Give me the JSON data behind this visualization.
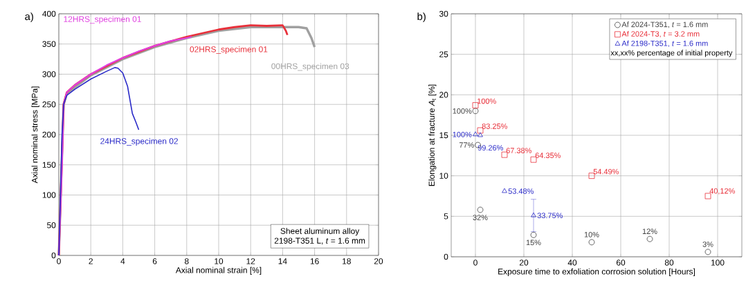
{
  "chart_data": [
    {
      "type": "line",
      "title": "a)",
      "xlabel": "Axial nominal strain [%]",
      "ylabel": "Axial nominal stress [MPa]",
      "xlim": [
        0,
        20
      ],
      "ylim": [
        0,
        400
      ],
      "xticks": [
        0,
        2,
        4,
        6,
        8,
        10,
        12,
        14,
        16,
        18,
        20
      ],
      "yticks": [
        0,
        50,
        100,
        150,
        200,
        250,
        300,
        350,
        400
      ],
      "grid": true,
      "annotations": [
        "Sheet aluminum alloy",
        "2198-T351 L, *t* = 1.6 mm"
      ],
      "series": [
        {
          "name": "00HRS_specimen 03",
          "color": "#a0a0a0",
          "x": [
            0,
            0.3,
            0.5,
            2,
            4,
            6,
            8,
            10,
            12,
            14,
            15,
            15.5,
            15.8,
            16
          ],
          "values": [
            0,
            250,
            268,
            298,
            325,
            345,
            360,
            372,
            378,
            378,
            378,
            376,
            360,
            345
          ]
        },
        {
          "name": "02HRS_specimen 01",
          "color": "#e8303a",
          "x": [
            0,
            0.3,
            0.5,
            1,
            2,
            4,
            6,
            8,
            9,
            10,
            11,
            12,
            13,
            14,
            14.2,
            14.3
          ],
          "values": [
            0,
            250,
            270,
            282,
            300,
            327,
            347,
            362,
            368,
            374,
            378,
            381,
            380,
            381,
            372,
            365
          ]
        },
        {
          "name": "12HRS_specimen 01",
          "color": "#e040e0",
          "x": [
            0,
            0.2,
            0.3,
            0.5,
            1,
            2,
            3,
            4,
            5,
            6,
            7,
            8,
            8.3
          ],
          "values": [
            0,
            150,
            250,
            270,
            282,
            300,
            315,
            327,
            338,
            347,
            355,
            360,
            362
          ]
        },
        {
          "name": "24HRS_specimen 02",
          "color": "#2a2ac8",
          "x": [
            0,
            0.1,
            0.2,
            0.3,
            0.5,
            1,
            2,
            3,
            3.5,
            3.7,
            4,
            4.3,
            4.6,
            4.8,
            5
          ],
          "values": [
            0,
            100,
            200,
            250,
            265,
            275,
            292,
            305,
            311,
            310,
            302,
            280,
            235,
            222,
            208
          ]
        }
      ]
    },
    {
      "type": "scatter",
      "title": "b)",
      "xlabel": "Exposure time to exfoliation corrosion solution [Hours]",
      "ylabel": "Elongation at fracture *A*$_{t}$ [%]",
      "xlim": [
        -10,
        110
      ],
      "ylim": [
        0,
        30
      ],
      "xticks": [
        0,
        20,
        40,
        60,
        80,
        100
      ],
      "yticks": [
        0,
        5,
        10,
        15,
        20,
        25,
        30
      ],
      "grid": true,
      "legend": "top right",
      "annotations": [
        "xx,xx% percentage of initial property",
        {
          "text": "100%",
          "x": 0,
          "y": 18
        },
        {
          "text": "77%",
          "x": 1,
          "y": 13.8
        },
        {
          "text": "32%",
          "x": 2,
          "y": 5.8
        },
        {
          "text": "15%",
          "x": 24,
          "y": 2.7
        },
        {
          "text": "10%",
          "x": 48,
          "y": 1.8
        },
        {
          "text": "12%",
          "x": 72,
          "y": 2.2
        },
        {
          "text": "3%",
          "x": 96,
          "y": 0.6
        },
        {
          "text": "100%",
          "x": 0,
          "y": 18.7
        },
        {
          "text": "83.25%",
          "x": 2,
          "y": 15.6
        },
        {
          "text": "67.38%",
          "x": 12,
          "y": 12.6
        },
        {
          "text": "64.35%",
          "x": 24,
          "y": 12.0
        },
        {
          "text": "54.49%",
          "x": 48,
          "y": 10.0
        },
        {
          "text": "40,12%",
          "x": 96,
          "y": 7.5
        },
        {
          "text": "100%",
          "x": 0,
          "y": 15.1
        },
        {
          "text": "99.26%",
          "x": 2,
          "y": 15.0
        },
        {
          "text": "53.48%",
          "x": 12,
          "y": 8.1
        },
        {
          "text": "33.75%",
          "x": 24,
          "y": 5.1
        }
      ],
      "series": [
        {
          "name": "Af 2024-T351, *t* = 1.6 mm",
          "color": "#404040",
          "marker": "circle",
          "x": [
            0,
            1,
            2,
            24,
            48,
            72,
            96
          ],
          "values": [
            18,
            13.8,
            5.8,
            2.7,
            1.8,
            2.2,
            0.6
          ]
        },
        {
          "name": "Af 2024-T3, *t* = 3.2 mm",
          "color": "#e8303a",
          "marker": "square",
          "x": [
            0,
            2,
            12,
            24,
            48,
            96
          ],
          "values": [
            18.7,
            15.6,
            12.6,
            12.0,
            10.0,
            7.5
          ]
        },
        {
          "name": "Af 2198-T351, *t* = 1.6 mm",
          "color": "#2a2ac8",
          "marker": "triangle",
          "x": [
            0,
            2,
            12,
            24
          ],
          "values": [
            15.1,
            15.0,
            8.1,
            5.1
          ],
          "errors": [
            null,
            null,
            null,
            2
          ]
        }
      ]
    }
  ]
}
